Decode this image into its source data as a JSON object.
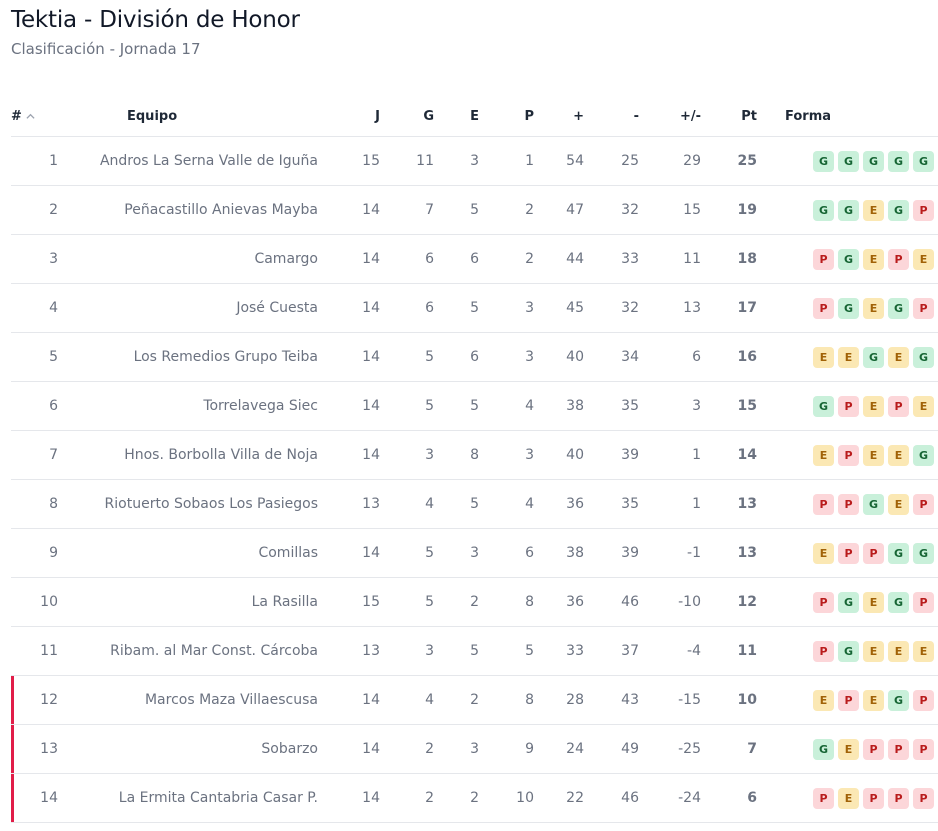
{
  "header": {
    "title": "Tektia - División de Honor",
    "subtitle": "Clasificación - Jornada 17"
  },
  "table": {
    "columns": {
      "rank": "#",
      "team": "Equipo",
      "played": "J",
      "won": "G",
      "drawn": "E",
      "lost": "P",
      "goals_for": "+",
      "goals_against": "-",
      "goal_diff": "+/-",
      "points": "Pt",
      "form": "Forma"
    },
    "sort_icon": "chevron-up-icon",
    "rows": [
      {
        "rank": "1",
        "team": "Andros La Serna Valle de Iguña",
        "played": "15",
        "won": "11",
        "drawn": "3",
        "lost": "1",
        "goals_for": "54",
        "goals_against": "25",
        "goal_diff": "29",
        "points": "25",
        "form": [
          "G",
          "G",
          "G",
          "G",
          "G"
        ]
      },
      {
        "rank": "2",
        "team": "Peñacastillo Anievas Mayba",
        "played": "14",
        "won": "7",
        "drawn": "5",
        "lost": "2",
        "goals_for": "47",
        "goals_against": "32",
        "goal_diff": "15",
        "points": "19",
        "form": [
          "G",
          "G",
          "E",
          "G",
          "P"
        ]
      },
      {
        "rank": "3",
        "team": "Camargo",
        "played": "14",
        "won": "6",
        "drawn": "6",
        "lost": "2",
        "goals_for": "44",
        "goals_against": "33",
        "goal_diff": "11",
        "points": "18",
        "form": [
          "P",
          "G",
          "E",
          "P",
          "E"
        ]
      },
      {
        "rank": "4",
        "team": "José Cuesta",
        "played": "14",
        "won": "6",
        "drawn": "5",
        "lost": "3",
        "goals_for": "45",
        "goals_against": "32",
        "goal_diff": "13",
        "points": "17",
        "form": [
          "P",
          "G",
          "E",
          "G",
          "P"
        ]
      },
      {
        "rank": "5",
        "team": "Los Remedios Grupo Teiba",
        "played": "14",
        "won": "5",
        "drawn": "6",
        "lost": "3",
        "goals_for": "40",
        "goals_against": "34",
        "goal_diff": "6",
        "points": "16",
        "form": [
          "E",
          "E",
          "G",
          "E",
          "G"
        ]
      },
      {
        "rank": "6",
        "team": "Torrelavega Siec",
        "played": "14",
        "won": "5",
        "drawn": "5",
        "lost": "4",
        "goals_for": "38",
        "goals_against": "35",
        "goal_diff": "3",
        "points": "15",
        "form": [
          "G",
          "P",
          "E",
          "P",
          "E"
        ]
      },
      {
        "rank": "7",
        "team": "Hnos. Borbolla Villa de Noja",
        "played": "14",
        "won": "3",
        "drawn": "8",
        "lost": "3",
        "goals_for": "40",
        "goals_against": "39",
        "goal_diff": "1",
        "points": "14",
        "form": [
          "E",
          "P",
          "E",
          "E",
          "G"
        ]
      },
      {
        "rank": "8",
        "team": "Riotuerto Sobaos Los Pasiegos",
        "played": "13",
        "won": "4",
        "drawn": "5",
        "lost": "4",
        "goals_for": "36",
        "goals_against": "35",
        "goal_diff": "1",
        "points": "13",
        "form": [
          "P",
          "P",
          "G",
          "E",
          "P"
        ]
      },
      {
        "rank": "9",
        "team": "Comillas",
        "played": "14",
        "won": "5",
        "drawn": "3",
        "lost": "6",
        "goals_for": "38",
        "goals_against": "39",
        "goal_diff": "-1",
        "points": "13",
        "form": [
          "E",
          "P",
          "P",
          "G",
          "G"
        ]
      },
      {
        "rank": "10",
        "team": "La Rasilla",
        "played": "15",
        "won": "5",
        "drawn": "2",
        "lost": "8",
        "goals_for": "36",
        "goals_against": "46",
        "goal_diff": "-10",
        "points": "12",
        "form": [
          "P",
          "G",
          "E",
          "G",
          "P"
        ]
      },
      {
        "rank": "11",
        "team": "Ribam. al Mar Const. Cárcoba",
        "played": "13",
        "won": "3",
        "drawn": "5",
        "lost": "5",
        "goals_for": "33",
        "goals_against": "37",
        "goal_diff": "-4",
        "points": "11",
        "form": [
          "P",
          "G",
          "E",
          "E",
          "E"
        ]
      },
      {
        "rank": "12",
        "team": "Marcos Maza Villaescusa",
        "played": "14",
        "won": "4",
        "drawn": "2",
        "lost": "8",
        "goals_for": "28",
        "goals_against": "43",
        "goal_diff": "-15",
        "points": "10",
        "form": [
          "E",
          "P",
          "E",
          "G",
          "P"
        ],
        "relegation": true
      },
      {
        "rank": "13",
        "team": "Sobarzo",
        "played": "14",
        "won": "2",
        "drawn": "3",
        "lost": "9",
        "goals_for": "24",
        "goals_against": "49",
        "goal_diff": "-25",
        "points": "7",
        "form": [
          "G",
          "E",
          "P",
          "P",
          "P"
        ],
        "relegation": true
      },
      {
        "rank": "14",
        "team": "La Ermita Cantabria Casar P.",
        "played": "14",
        "won": "2",
        "drawn": "2",
        "lost": "10",
        "goals_for": "22",
        "goals_against": "46",
        "goal_diff": "-24",
        "points": "6",
        "form": [
          "P",
          "E",
          "P",
          "P",
          "P"
        ],
        "relegation": true
      }
    ]
  },
  "colors": {
    "win_bg": "#c9f0da",
    "draw_bg": "#fbe8b4",
    "loss_bg": "#fcd6d9",
    "relegation_marker": "#e11d48"
  }
}
